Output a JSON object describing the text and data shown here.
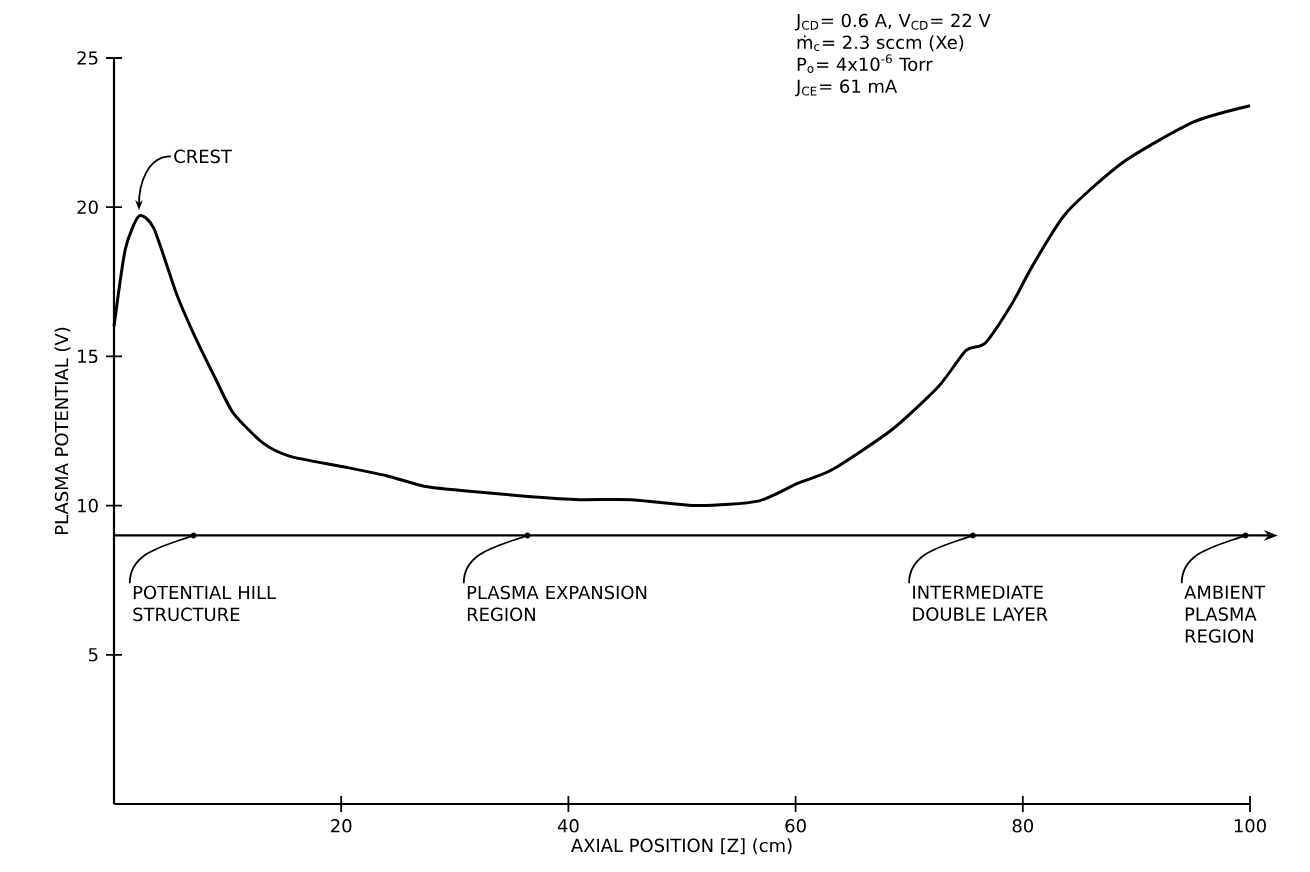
{
  "chart_data": {
    "type": "line",
    "xlabel": "AXIAL POSITION [Z] (cm)",
    "ylabel": "PLASMA POTENTIAL (V)",
    "xlim": [
      0,
      100
    ],
    "ylim": [
      0,
      25
    ],
    "xticks": [
      20,
      40,
      60,
      80,
      100
    ],
    "yticks": [
      5,
      10,
      15,
      20,
      25
    ],
    "grid": false,
    "marker": "none",
    "line_style": "solid",
    "series": [
      {
        "color": "#000000",
        "x": [
          0,
          1,
          2.2,
          3.5,
          5.5,
          7.2,
          9,
          10.5,
          13.1,
          15.5,
          20.2,
          24,
          27.3,
          30.8,
          36.7,
          41,
          45.5,
          51.4,
          56.7,
          60.2,
          63.2,
          68.5,
          72.6,
          75.0,
          76.7,
          79.1,
          80.8,
          83.8,
          88.8,
          95,
          100
        ],
        "values": [
          16.0,
          18.6,
          19.7,
          19.3,
          17.1,
          15.6,
          14.2,
          13.1,
          12.1,
          11.65,
          11.3,
          11.0,
          10.65,
          10.5,
          10.3,
          10.2,
          10.2,
          10.0,
          10.15,
          10.75,
          11.2,
          12.55,
          14.0,
          15.2,
          15.45,
          16.8,
          18.0,
          19.8,
          21.5,
          22.85,
          23.4
        ]
      }
    ],
    "ref_lines": [
      {
        "axis": "y",
        "value": 9
      }
    ],
    "annotations": [
      "J$_{CD}$= 0.6 A,  V$_{CD}$= 22 V",
      "ṁ$_{c}$= 2.3 sccm (Xe)",
      "P$_{o}$= 4x10$^{-6}$ Torr",
      "J$_{CE}$= 61 mA",
      {
        "text": "CREST",
        "x": 2.2,
        "y": 19.7
      },
      {
        "text": "POTENTIAL HILL STRUCTURE",
        "x": 7,
        "y": 9
      },
      {
        "text": "PLASMA EXPANSION REGION",
        "x": 36.4,
        "y": 9
      },
      {
        "text": "INTERMEDIATE DOUBLE LAYER",
        "x": 75.6,
        "y": 9
      },
      {
        "text": "AMBIENT PLASMA REGION",
        "x": 99.6,
        "y": 9
      }
    ]
  }
}
